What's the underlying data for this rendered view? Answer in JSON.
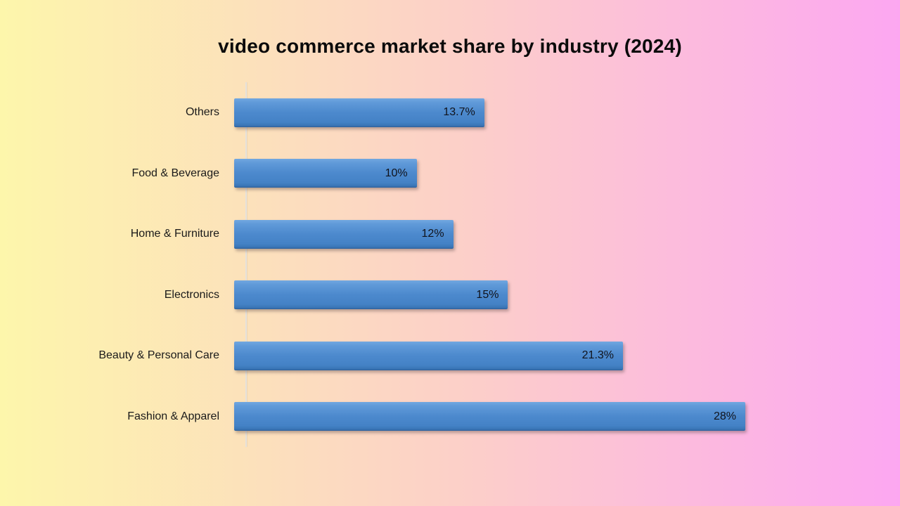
{
  "title": "video commerce market share by industry (2024)",
  "chart_data": {
    "type": "bar",
    "orientation": "horizontal",
    "title": "video commerce market share by industry (2024)",
    "categories": [
      "Others",
      "Food & Beverage",
      "Home & Furniture",
      "Electronics",
      "Beauty & Personal Care",
      "Fashion & Apparel"
    ],
    "values": [
      13.7,
      10,
      12,
      15,
      21.3,
      28
    ],
    "value_labels": [
      "13.7%",
      "10%",
      "12%",
      "15%",
      "21.3%",
      "28%"
    ],
    "xlabel": "",
    "ylabel": "",
    "xlim": [
      0,
      28
    ],
    "grid": false,
    "legend": false,
    "data_label_position": "inside-end"
  },
  "colors": {
    "background_left": "#FDF6AB",
    "background_right": "#FCA7F1",
    "bar_fill": "#4C89CD",
    "bar_fill_top": "#71A7E0",
    "bar_fill_bottom": "#2F619B",
    "axis_line": "#E4E1DC",
    "title_text": "#0B0B0B",
    "label_text": "#1A1A1A"
  }
}
